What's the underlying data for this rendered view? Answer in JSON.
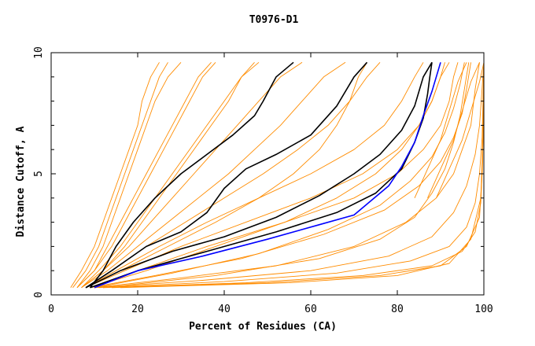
{
  "chart_data": {
    "type": "line",
    "title": "T0976-D1",
    "xlabel": "Percent of Residues (CA)",
    "ylabel": "Distance Cutoff, A",
    "xlim": [
      0,
      100
    ],
    "ylim": [
      0,
      10
    ],
    "x_ticks": [
      0,
      20,
      40,
      60,
      80,
      100
    ],
    "y_ticks": [
      0,
      5,
      10
    ],
    "grid": false,
    "legend": "none",
    "colors": {
      "background": "#ffffff",
      "axes": "#000000",
      "orange": "#ff8c00",
      "black": "#000000",
      "blue": "#0000ff"
    },
    "series": [
      {
        "color": "#ff8c00",
        "x": [
          4.5,
          7,
          10,
          12,
          14,
          16,
          18,
          20,
          21,
          23,
          25
        ],
        "y": [
          0.3,
          1,
          2,
          3,
          4,
          5,
          6,
          7,
          8,
          9,
          9.6
        ]
      },
      {
        "color": "#ff8c00",
        "x": [
          5,
          8,
          11,
          13,
          15,
          17,
          19,
          21,
          23,
          25,
          27
        ],
        "y": [
          0.3,
          1,
          2,
          3,
          4,
          5,
          6,
          7,
          8,
          9,
          9.6
        ]
      },
      {
        "color": "#ff8c00",
        "x": [
          6,
          9,
          12,
          14,
          16,
          18,
          20,
          22,
          24,
          27,
          30
        ],
        "y": [
          0.3,
          1,
          2,
          3,
          4,
          5,
          6,
          7,
          8,
          9,
          9.6
        ]
      },
      {
        "color": "#ff8c00",
        "x": [
          6,
          10,
          14,
          17,
          20,
          23,
          26,
          29,
          32,
          35,
          38
        ],
        "y": [
          0.3,
          1,
          2,
          3,
          4,
          5,
          6,
          7,
          8,
          9,
          9.6
        ]
      },
      {
        "color": "#ff8c00",
        "x": [
          7,
          11,
          16,
          20,
          24,
          28,
          32,
          36,
          40,
          44,
          48
        ],
        "y": [
          0.3,
          1,
          2,
          3,
          4,
          5,
          6,
          7,
          8,
          9,
          9.6
        ]
      },
      {
        "color": "#ff8c00",
        "x": [
          7,
          12,
          18,
          23,
          28,
          33,
          38,
          43,
          48,
          53,
          58
        ],
        "y": [
          0.3,
          1,
          2,
          3,
          4,
          5,
          6,
          7,
          8,
          9,
          9.6
        ]
      },
      {
        "color": "#ff8c00",
        "x": [
          7,
          13,
          20,
          27,
          34,
          41,
          47,
          53,
          58,
          63,
          68
        ],
        "y": [
          0.3,
          1,
          2,
          3,
          4,
          5,
          6,
          7,
          8,
          9,
          9.6
        ]
      },
      {
        "color": "#ff8c00",
        "x": [
          8,
          14,
          22,
          31,
          40,
          49,
          57,
          64,
          69,
          73,
          76
        ],
        "y": [
          0.3,
          1,
          2,
          3,
          4,
          5,
          6,
          7,
          8,
          9,
          9.6
        ]
      },
      {
        "color": "#ff8c00",
        "x": [
          8,
          15,
          25,
          36,
          48,
          60,
          70,
          77,
          81,
          84,
          86
        ],
        "y": [
          0.3,
          1,
          2,
          3,
          4,
          5,
          6,
          7,
          8,
          9,
          9.6
        ]
      },
      {
        "color": "#ff8c00",
        "x": [
          8,
          17,
          30,
          45,
          60,
          72,
          80,
          85,
          88,
          90,
          91
        ],
        "y": [
          0.3,
          1,
          2,
          3,
          4,
          5,
          6,
          7,
          8,
          9,
          9.6
        ]
      },
      {
        "color": "#ff8c00",
        "x": [
          9,
          20,
          36,
          54,
          70,
          80,
          86,
          90,
          92,
          93,
          94
        ],
        "y": [
          0.3,
          1,
          2,
          3,
          4,
          5,
          6,
          7,
          8,
          9,
          9.6
        ]
      },
      {
        "color": "#ff8c00",
        "x": [
          9,
          24,
          44,
          63,
          77,
          85,
          90,
          93,
          95,
          96,
          97
        ],
        "y": [
          0.3,
          0.8,
          1.5,
          2.5,
          3.5,
          4.5,
          5.5,
          6.5,
          7.5,
          8.5,
          9.6
        ]
      },
      {
        "color": "#ff8c00",
        "x": [
          10,
          30,
          52,
          70,
          82,
          89,
          93,
          95,
          97,
          98,
          99
        ],
        "y": [
          0.3,
          0.7,
          1.2,
          2,
          3,
          4,
          5,
          6,
          7,
          8.5,
          9.6
        ]
      },
      {
        "color": "#ff8c00",
        "x": [
          10,
          35,
          60,
          78,
          88,
          93,
          96,
          98,
          99,
          99.5,
          100
        ],
        "y": [
          0.3,
          0.6,
          1,
          1.6,
          2.4,
          3.4,
          4.5,
          5.8,
          7,
          8.3,
          9.6
        ]
      },
      {
        "color": "#ff8c00",
        "x": [
          11,
          40,
          66,
          83,
          92,
          96,
          98,
          99,
          99.6,
          99.8,
          100
        ],
        "y": [
          0.3,
          0.55,
          0.9,
          1.4,
          2,
          2.8,
          3.8,
          5,
          6.5,
          8,
          9.6
        ]
      },
      {
        "color": "#ff8c00",
        "x": [
          12,
          45,
          72,
          88,
          95,
          98,
          99.3,
          99.7,
          99.9,
          100
        ],
        "y": [
          0.3,
          0.5,
          0.8,
          1.2,
          1.8,
          2.6,
          3.8,
          5.5,
          7.5,
          9.6
        ]
      },
      {
        "color": "#ff8c00",
        "x": [
          14,
          50,
          76,
          90,
          96,
          99,
          99.6,
          99.9,
          100
        ],
        "y": [
          0.3,
          0.5,
          0.8,
          1.2,
          2,
          3.2,
          5,
          7.5,
          9.6
        ]
      },
      {
        "color": "#ff8c00",
        "x": [
          16,
          55,
          80,
          92,
          97,
          99.3,
          99.8,
          100
        ],
        "y": [
          0.3,
          0.5,
          0.8,
          1.3,
          2.3,
          4,
          6.5,
          9.6
        ]
      },
      {
        "color": "#ff8c00",
        "x": [
          12,
          38,
          62,
          76,
          84,
          88,
          91,
          93,
          94.5,
          95.5,
          96.5
        ],
        "y": [
          0.3,
          0.8,
          1.5,
          2.3,
          3.2,
          4.2,
          5.2,
          6.3,
          7.4,
          8.5,
          9.6
        ]
      },
      {
        "color": "#ff8c00",
        "x": [
          10,
          28,
          48,
          64,
          76,
          83,
          88,
          91,
          93,
          94.5,
          95.5
        ],
        "y": [
          0.3,
          0.9,
          1.7,
          2.7,
          3.7,
          4.7,
          5.7,
          6.7,
          7.7,
          8.7,
          9.6
        ]
      },
      {
        "color": "#ff8c00",
        "x": [
          9,
          22,
          38,
          54,
          66,
          75,
          81,
          85,
          88,
          90,
          92
        ],
        "y": [
          0.3,
          1,
          2,
          3,
          4,
          5,
          6,
          7,
          8,
          9,
          9.6
        ]
      },
      {
        "color": "#ff8c00",
        "x": [
          8,
          16,
          27,
          38,
          48,
          56,
          62,
          66,
          69,
          71,
          73
        ],
        "y": [
          0.3,
          1,
          2,
          3,
          4,
          5,
          6,
          7,
          8,
          9,
          9.6
        ]
      },
      {
        "color": "#ff8c00",
        "x": [
          7,
          12,
          17,
          21,
          25,
          29,
          33,
          37,
          41,
          44,
          47
        ],
        "y": [
          0.3,
          1,
          2,
          3,
          4,
          5,
          6,
          7,
          8,
          9,
          9.6
        ]
      },
      {
        "color": "#ff8c00",
        "x": [
          6,
          10,
          13,
          16,
          19,
          22,
          25,
          28,
          31,
          34,
          37
        ],
        "y": [
          0.3,
          1,
          2,
          3,
          4,
          5,
          6,
          7,
          8,
          9,
          9.6
        ]
      },
      {
        "color": "#ff8c00",
        "x": [
          84,
          85.5,
          87,
          88.5,
          90,
          91,
          92,
          93,
          94,
          95,
          96
        ],
        "y": [
          4,
          4.6,
          5.2,
          5.8,
          6.4,
          7,
          7.6,
          8.2,
          8.8,
          9.2,
          9.6
        ]
      },
      {
        "color": "#ff8c00",
        "x": [
          87,
          88.5,
          90,
          91.5,
          93,
          94,
          95,
          96,
          97,
          98,
          99
        ],
        "y": [
          4,
          4.6,
          5.2,
          5.8,
          6.4,
          7,
          7.6,
          8.2,
          8.8,
          9.2,
          9.6
        ]
      },
      {
        "color": "#ff8c00",
        "x": [
          89,
          90.5,
          92,
          93.5,
          95,
          96,
          97,
          98,
          99,
          99.5,
          100
        ],
        "y": [
          4,
          4.6,
          5.2,
          5.8,
          6.4,
          7,
          7.6,
          8.2,
          8.8,
          9.2,
          9.6
        ]
      },
      {
        "color": "#000000",
        "x": [
          9,
          12,
          15,
          19,
          24,
          30,
          36,
          42,
          47,
          49,
          52,
          56
        ],
        "y": [
          0.3,
          1,
          2,
          3,
          4,
          5,
          5.8,
          6.6,
          7.4,
          8,
          9,
          9.6
        ]
      },
      {
        "color": "#000000",
        "x": [
          8,
          14,
          22,
          30,
          36,
          40,
          45,
          52,
          60,
          66,
          70,
          73
        ],
        "y": [
          0.3,
          1,
          2,
          2.6,
          3.4,
          4.4,
          5.2,
          5.8,
          6.6,
          7.8,
          9,
          9.6
        ]
      },
      {
        "color": "#000000",
        "x": [
          8,
          16,
          28,
          40,
          52,
          62,
          70,
          76,
          81,
          84,
          86,
          88
        ],
        "y": [
          0.3,
          1,
          1.8,
          2.4,
          3.2,
          4.1,
          5,
          5.8,
          6.8,
          7.8,
          9,
          9.6
        ]
      },
      {
        "color": "#000000",
        "x": [
          9,
          20,
          36,
          52,
          66,
          75,
          81,
          84,
          86,
          87,
          87.5,
          88
        ],
        "y": [
          0.3,
          1,
          1.8,
          2.6,
          3.4,
          4.2,
          5.2,
          6.3,
          7.3,
          8.3,
          9,
          9.6
        ]
      },
      {
        "color": "#0000ff",
        "x": [
          10,
          20,
          35,
          50,
          62,
          70,
          74,
          78,
          81,
          84,
          86,
          88,
          90
        ],
        "y": [
          0.3,
          1,
          1.6,
          2.3,
          2.9,
          3.3,
          3.9,
          4.5,
          5.3,
          6.3,
          7.4,
          8.4,
          9.6
        ]
      }
    ]
  }
}
